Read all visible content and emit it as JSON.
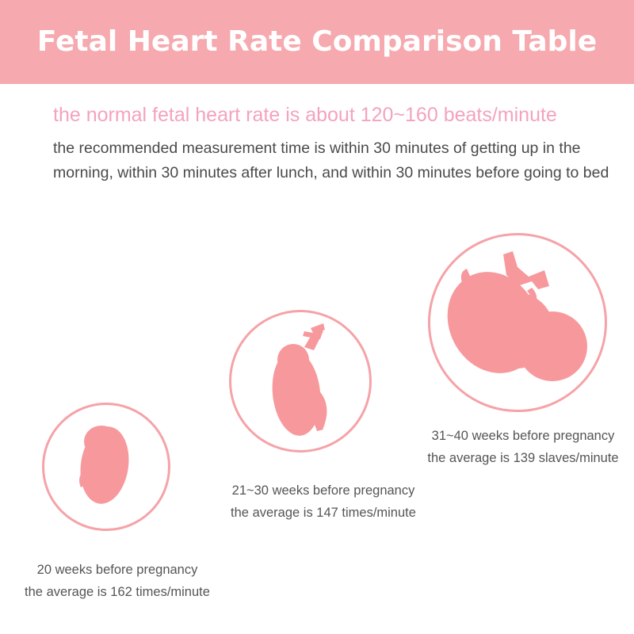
{
  "header": {
    "title": "Fetal Heart Rate Comparison Table"
  },
  "intro": {
    "normal_range": "the normal fetal heart rate is about 120~160 beats/minute",
    "recommendation": "the recommended measurement time is within 30 minutes of getting up in the morning, within 30 minutes after lunch, and within 30 minutes before going to bed"
  },
  "colors": {
    "header_bg": "#f6a9ae",
    "accent_text": "#f4a3bd",
    "fetus_fill": "#f7999c",
    "ring_stroke": "#f5a3a8"
  },
  "stages": [
    {
      "period": "20 weeks before pregnancy",
      "average": "the average is 162 times/minute",
      "icon": "fetus-small-icon"
    },
    {
      "period": "21~30 weeks before pregnancy",
      "average": "the average is 147 times/minute",
      "icon": "fetus-medium-icon"
    },
    {
      "period": "31~40 weeks before pregnancy",
      "average": "the average is 139 slaves/minute",
      "icon": "fetus-large-icon"
    }
  ]
}
